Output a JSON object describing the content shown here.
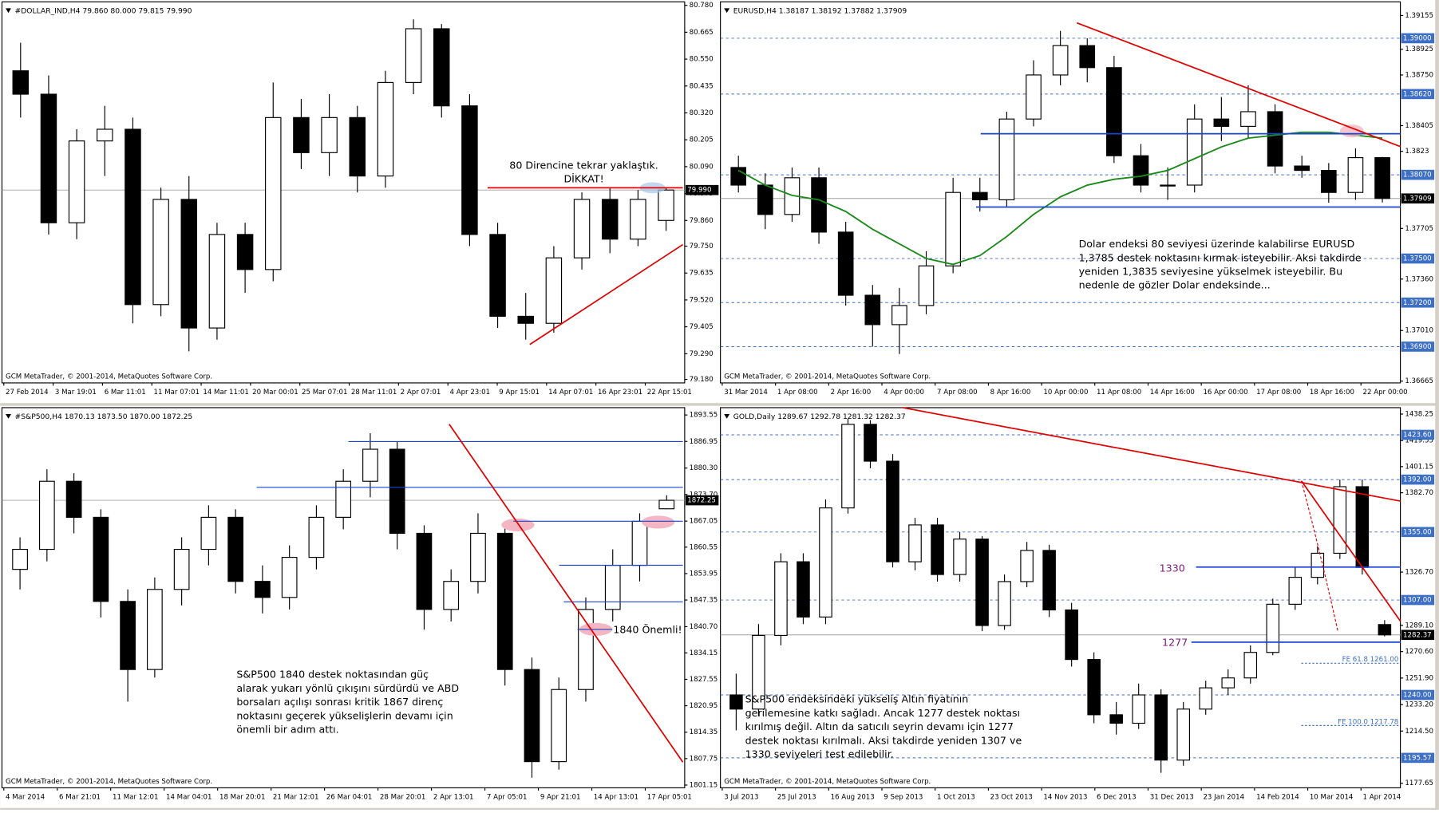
{
  "chart_data": [
    {
      "type": "candlestick",
      "title": "#DOLLAR_IND,H4  79.860 80.000 79.815 79.990",
      "ylim": [
        79.165,
        80.795
      ],
      "yticks": [
        {
          "value": 80.78,
          "label": "80.780"
        },
        80.665,
        {
          "value": 80.55,
          "label": "80.550"
        },
        80.435,
        {
          "value": 80.32,
          "label": "80.320"
        },
        80.205,
        {
          "value": 80.09,
          "label": "80.090"
        },
        79.975,
        {
          "value": 79.86,
          "label": "79.860"
        },
        {
          "value": 79.75,
          "label": "79.750"
        },
        79.635,
        {
          "value": 79.52,
          "label": "79.520"
        },
        79.405,
        {
          "value": 79.29,
          "label": "79.290"
        },
        {
          "value": 79.18,
          "label": "79.180"
        }
      ],
      "last": {
        "value": 79.99,
        "label": "79.990"
      },
      "x_labels": [
        "27 Feb 2014",
        "3 Mar 19:01",
        "6 Mar 11:01",
        "11 Mar 07:01",
        "14 Mar 11:01",
        "20 Mar 00:01",
        "25 Mar 07:01",
        "28 Mar 11:01",
        "2 Apr 07:01",
        "4 Apr 23:01",
        "9 Apr 15:01",
        "14 Apr 07:01",
        "16 Apr 23:01",
        "22 Apr 15:01"
      ],
      "open": [
        80.5,
        80.4,
        79.85,
        80.2,
        80.25,
        79.5,
        79.95,
        79.4,
        79.8,
        79.65,
        80.3,
        80.15,
        80.3,
        80.05,
        80.45,
        80.68,
        80.35,
        79.8,
        79.45,
        79.42,
        79.7,
        79.95,
        79.78,
        79.86
      ],
      "high": [
        80.62,
        80.48,
        80.25,
        80.35,
        80.3,
        80.0,
        80.05,
        79.85,
        79.85,
        80.45,
        80.38,
        80.4,
        80.35,
        80.5,
        80.72,
        80.7,
        80.4,
        79.85,
        79.55,
        79.75,
        79.98,
        80.0,
        79.99,
        80.0
      ],
      "low": [
        80.3,
        79.8,
        79.78,
        80.05,
        79.42,
        79.45,
        79.3,
        79.35,
        79.55,
        79.6,
        80.08,
        80.05,
        79.98,
        80.0,
        80.4,
        80.3,
        79.75,
        79.4,
        79.35,
        79.38,
        79.65,
        79.72,
        79.75,
        79.815
      ],
      "close": [
        80.4,
        79.85,
        80.2,
        80.25,
        79.5,
        79.95,
        79.4,
        79.8,
        79.65,
        80.3,
        80.15,
        80.3,
        80.05,
        80.45,
        80.68,
        80.35,
        79.8,
        79.45,
        79.42,
        79.7,
        79.95,
        79.78,
        79.95,
        79.99
      ],
      "notes": [
        [
          "80 Direncine tekrar yaklaştık.",
          "DİKKAT!"
        ]
      ],
      "footer": "GCM MetaTrader, © 2001-2014, MetaQuotes Software Corp."
    },
    {
      "type": "candlestick",
      "title": "EURUSD,H4  1.38187 1.38192 1.37882 1.37909",
      "ylim": [
        1.36653,
        1.39248
      ],
      "yticks": [
        1.39155,
        1.38925,
        {
          "value": 1.3875,
          "label": "1.38750"
        },
        1.38405,
        1.3823,
        1.37705,
        {
          "value": 1.3736,
          "label": "1.37360"
        },
        {
          "value": 1.3701,
          "label": "1.37010"
        },
        1.36665
      ],
      "levels": [
        {
          "value": 1.39,
          "label": "1.39000"
        },
        {
          "value": 1.3862,
          "label": "1.38620"
        },
        {
          "value": 1.3807,
          "label": "1.38070"
        },
        {
          "value": 1.375,
          "label": "1.37500"
        },
        {
          "value": 1.372,
          "label": "1.37200"
        },
        {
          "value": 1.369,
          "label": "1.36900"
        }
      ],
      "last": 1.37909,
      "x_labels": [
        "31 Mar 2014",
        "1 Apr 08:00",
        "2 Apr 16:00",
        "4 Apr 00:00",
        "7 Apr 08:00",
        "8 Apr 16:00",
        "10 Apr 00:00",
        "11 Apr 08:00",
        "14 Apr 16:00",
        "16 Apr 00:00",
        "17 Apr 08:00",
        "18 Apr 16:00",
        "22 Apr 00:00"
      ],
      "open": [
        1.3812,
        1.38,
        1.378,
        1.3805,
        1.3768,
        1.3725,
        1.3705,
        1.3718,
        1.3745,
        1.3795,
        1.379,
        1.3845,
        1.3875,
        1.3895,
        1.388,
        1.382,
        1.38,
        1.38,
        1.3845,
        1.384,
        1.385,
        1.3813,
        1.381,
        1.3795,
        1.38187
      ],
      "high": [
        1.382,
        1.3808,
        1.3812,
        1.3812,
        1.3775,
        1.3732,
        1.373,
        1.3755,
        1.3805,
        1.3805,
        1.385,
        1.3885,
        1.3905,
        1.39,
        1.3888,
        1.3828,
        1.3812,
        1.3855,
        1.386,
        1.3868,
        1.3855,
        1.382,
        1.3815,
        1.3825,
        1.38192
      ],
      "low": [
        1.3795,
        1.377,
        1.3775,
        1.376,
        1.3718,
        1.369,
        1.3685,
        1.3712,
        1.374,
        1.3782,
        1.3785,
        1.384,
        1.3868,
        1.387,
        1.3815,
        1.3795,
        1.379,
        1.3795,
        1.383,
        1.3832,
        1.3808,
        1.3805,
        1.3788,
        1.379,
        1.37882
      ],
      "close": [
        1.38,
        1.378,
        1.3805,
        1.3768,
        1.3725,
        1.3705,
        1.3718,
        1.3745,
        1.3795,
        1.379,
        1.3845,
        1.3875,
        1.3895,
        1.388,
        1.382,
        1.38,
        1.38,
        1.3845,
        1.384,
        1.385,
        1.3813,
        1.381,
        1.3795,
        1.38187,
        1.37909
      ],
      "ma": [
        1.381,
        1.38,
        1.3793,
        1.379,
        1.3782,
        1.377,
        1.376,
        1.375,
        1.3746,
        1.3752,
        1.3765,
        1.378,
        1.3792,
        1.38,
        1.3804,
        1.3806,
        1.381,
        1.3818,
        1.3826,
        1.3832,
        1.3834,
        1.3836,
        1.3836,
        1.3834,
        1.3832
      ],
      "ma_color": "#1a8a1a",
      "notes": [
        [
          "Dolar endeksi 80 seviyesi üzerinde kalabilirse EURUSD",
          "1,3785 destek noktasını kırmak isteyebilir. Aksi takdirde",
          "yeniden 1,3835 seviyesine yükselmek isteyebilir. Bu",
          "nedenle de gözler Dolar endeksinde..."
        ]
      ],
      "footer": "GCM MetaTrader, © 2001-2014, MetaQuotes Software Corp."
    },
    {
      "type": "candlestick",
      "title": "#S&P500,H4  1870.13 1873.50 1870.00 1872.25",
      "ylim": [
        1800.46,
        1895.38
      ],
      "yticks": [
        1893.55,
        1886.95,
        {
          "value": 1880.3,
          "label": "1880.30"
        },
        {
          "value": 1873.7,
          "label": "1873.70"
        },
        1867.05,
        1860.55,
        1853.95,
        1847.35,
        {
          "value": 1840.7,
          "label": "1840.70"
        },
        1834.15,
        1827.55,
        1820.95,
        1814.35,
        1807.75,
        1801.15
      ],
      "last": 1872.25,
      "x_labels": [
        "4 Mar 2014",
        "6 Mar 21:01",
        "11 Mar 12:01",
        "14 Mar 04:01",
        "18 Mar 20:01",
        "21 Mar 12:01",
        "26 Mar 04:01",
        "28 Mar 20:01",
        "2 Apr 13:01",
        "7 Apr 05:01",
        "9 Apr 21:01",
        "14 Apr 13:01",
        "17 Apr 05:01"
      ],
      "open": [
        1855,
        1860,
        1877,
        1868,
        1847,
        1830,
        1850,
        1860,
        1868,
        1852,
        1848,
        1858,
        1868,
        1877,
        1885,
        1864,
        1845,
        1852,
        1864,
        1830,
        1807,
        1825,
        1845,
        1856,
        1870.13
      ],
      "high": [
        1863,
        1880,
        1879,
        1870,
        1850,
        1853,
        1863,
        1871,
        1870,
        1856,
        1861,
        1871,
        1880,
        1889,
        1887,
        1866,
        1855,
        1869,
        1866,
        1833,
        1828,
        1848,
        1860,
        1869,
        1873.5
      ],
      "low": [
        1850,
        1857,
        1864,
        1843,
        1822,
        1828,
        1846,
        1856,
        1849,
        1844,
        1845,
        1855,
        1865,
        1873,
        1860,
        1840,
        1842,
        1849,
        1826,
        1803,
        1805,
        1822,
        1842,
        1852,
        1870
      ],
      "close": [
        1860,
        1877,
        1868,
        1847,
        1830,
        1850,
        1860,
        1868,
        1852,
        1848,
        1858,
        1868,
        1877,
        1885,
        1864,
        1845,
        1852,
        1864,
        1830,
        1807,
        1825,
        1845,
        1856,
        1867,
        1872.25
      ],
      "notes": [
        [
          "S&P500 1840 destek noktasından güç",
          "alarak yukarı yönlü çıkışını sürdürdü ve ABD",
          "borsaları açılışı sonrası kritik 1867 direnç",
          "noktasını geçerek yükselişlerin devamı için",
          "önemli bir adım attı."
        ],
        [
          "1840 Önemli!"
        ]
      ],
      "footer": "GCM MetaTrader, © 2001-2014, MetaQuotes Software Corp."
    },
    {
      "type": "candlestick",
      "title": "GOLD,Daily  1289.67 1292.78 1281.32 1282.37",
      "ylim": [
        1174.42,
        1442.78
      ],
      "yticks": [
        1438.25,
        1419.55,
        1401.15,
        {
          "value": 1382.7,
          "label": "1382.70"
        },
        {
          "value": 1326.7,
          "label": "1326.70"
        },
        {
          "value": 1289.1,
          "label": "1289.10"
        },
        {
          "value": 1270.6,
          "label": "1270.60"
        },
        {
          "value": 1251.9,
          "label": "1251.90"
        },
        {
          "value": 1233.2,
          "label": "1233.20"
        },
        {
          "value": 1214.5,
          "label": "1214.50"
        },
        1177.65
      ],
      "levels": [
        {
          "value": 1423.6,
          "label": "1423.60"
        },
        {
          "value": 1392,
          "label": "1392.00"
        },
        {
          "value": 1355,
          "label": "1355.00"
        },
        {
          "value": 1307,
          "label": "1307.00"
        },
        {
          "value": 1240,
          "label": "1240.00"
        },
        1195.57
      ],
      "last": 1282.37,
      "x_labels": [
        "3 Jul 2013",
        "25 Jul 2013",
        "16 Aug 2013",
        "9 Sep 2013",
        "1 Oct 2013",
        "23 Oct 2013",
        "14 Nov 2013",
        "6 Dec 2013",
        "31 Dec 2013",
        "23 Jan 2014",
        "14 Feb 2014",
        "10 Mar 2014",
        "1 Apr 2014"
      ],
      "open": [
        1240,
        1230,
        1282,
        1334,
        1295,
        1372,
        1431,
        1405,
        1334,
        1360,
        1325,
        1350,
        1289,
        1320,
        1342,
        1300,
        1265,
        1226,
        1220,
        1240,
        1194,
        1230,
        1245,
        1252,
        1270,
        1304,
        1323,
        1340,
        1387,
        1289.67
      ],
      "high": [
        1255,
        1290,
        1340,
        1340,
        1378,
        1435,
        1434,
        1410,
        1365,
        1365,
        1355,
        1352,
        1325,
        1348,
        1346,
        1305,
        1270,
        1235,
        1248,
        1244,
        1235,
        1250,
        1258,
        1275,
        1308,
        1330,
        1345,
        1392,
        1392,
        1292.78
      ],
      "low": [
        1215,
        1225,
        1275,
        1290,
        1290,
        1368,
        1400,
        1330,
        1328,
        1320,
        1320,
        1285,
        1286,
        1316,
        1295,
        1260,
        1220,
        1212,
        1216,
        1185,
        1190,
        1226,
        1240,
        1248,
        1268,
        1300,
        1318,
        1336,
        1325,
        1281.32
      ],
      "close": [
        1230,
        1282,
        1334,
        1295,
        1372,
        1431,
        1405,
        1334,
        1360,
        1325,
        1350,
        1289,
        1320,
        1342,
        1300,
        1265,
        1226,
        1220,
        1240,
        1194,
        1230,
        1245,
        1252,
        1270,
        1304,
        1323,
        1340,
        1387,
        1330,
        1282.37
      ],
      "notes": [
        [
          "S&P500 endeksindeki yükseliş Altın fiyatının",
          "gerilemesine katkı sağladı. Ancak 1277 destek noktası",
          "kırılmış değil. Altın da satıcılı seyrin devamı için 1277",
          "destek noktası kırılmalı. Aksi takdirde yeniden 1307 ve",
          "1330 seviyeleri test edilebilir."
        ],
        [
          "1330"
        ],
        [
          "1277"
        ],
        [
          "FE 61.8 1261.00"
        ],
        [
          "FE 100.0 1217.78"
        ]
      ],
      "footer": "GCM MetaTrader, © 2001-2014, MetaQuotes Software Corp."
    }
  ]
}
